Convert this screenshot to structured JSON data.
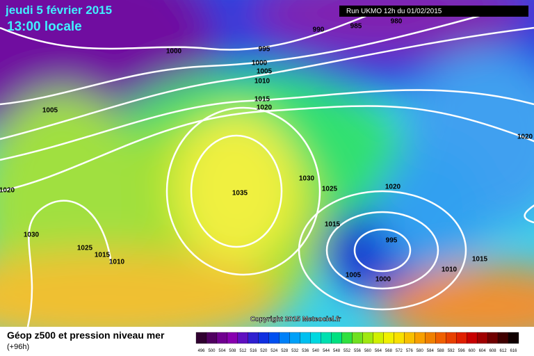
{
  "header": {
    "title": "jeudi 5 février 2015",
    "subtitle": "13:00 locale",
    "run": "Run UKMO 12h du 01/02/2015"
  },
  "copyright": "Copyright 2015 Meteociel.fr",
  "footer": {
    "title": "Géop z500 et pression niveau mer",
    "lead": "(+96h)"
  },
  "isobar_labels": [
    "990",
    "985",
    "980",
    "995",
    "1000",
    "1000",
    "1005",
    "1010",
    "1015",
    "1020",
    "1005",
    "1020",
    "1020",
    "1035",
    "1030",
    "1025",
    "1020",
    "1015",
    "1030",
    "1025",
    "1015",
    "1010",
    "995",
    "1005",
    "1000",
    "1010",
    "1015"
  ],
  "scale": {
    "labels": [
      "496",
      "500",
      "504",
      "508",
      "512",
      "516",
      "520",
      "524",
      "528",
      "532",
      "536",
      "540",
      "544",
      "548",
      "552",
      "556",
      "560",
      "564",
      "568",
      "572",
      "576",
      "580",
      "584",
      "588",
      "592",
      "596",
      "600",
      "604",
      "608",
      "612",
      "616"
    ]
  }
}
